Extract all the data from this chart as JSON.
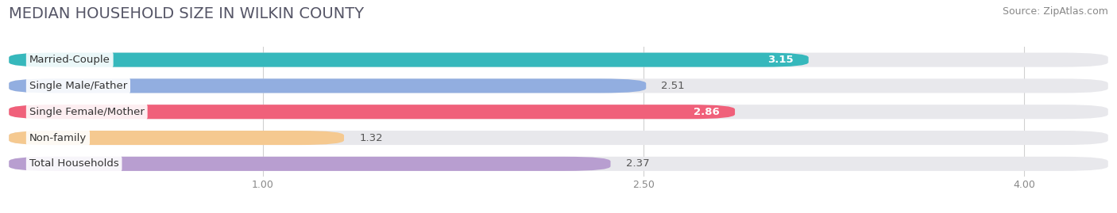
{
  "title": "MEDIAN HOUSEHOLD SIZE IN WILKIN COUNTY",
  "source": "Source: ZipAtlas.com",
  "categories": [
    "Married-Couple",
    "Single Male/Father",
    "Single Female/Mother",
    "Non-family",
    "Total Households"
  ],
  "values": [
    3.15,
    2.51,
    2.86,
    1.32,
    2.37
  ],
  "bar_colors": [
    "#36b8bc",
    "#92aee0",
    "#f0607a",
    "#f5c990",
    "#b89ed0"
  ],
  "value_inside": [
    true,
    false,
    true,
    false,
    false
  ],
  "xlim": [
    0,
    4.33
  ],
  "axis_xlim": [
    0,
    4.33
  ],
  "xticks": [
    1.0,
    2.5,
    4.0
  ],
  "xticklabels": [
    "1.00",
    "2.50",
    "4.00"
  ],
  "background_color": "#ffffff",
  "bar_bg_color": "#e8e8ec",
  "title_fontsize": 14,
  "source_fontsize": 9,
  "label_fontsize": 9.5,
  "value_fontsize": 9.5,
  "bar_height": 0.55,
  "n_bars": 5
}
